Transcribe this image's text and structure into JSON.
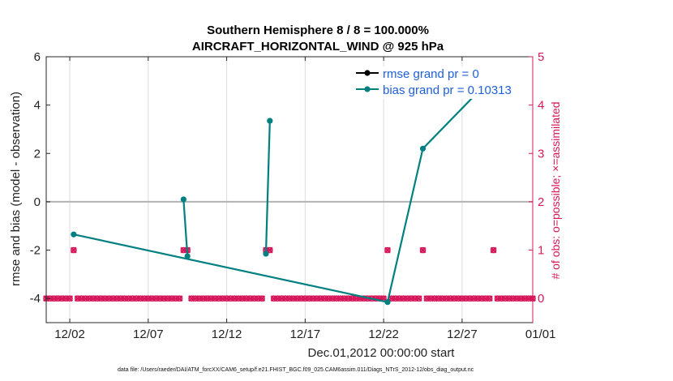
{
  "chart_data": {
    "type": "line",
    "title": [
      "Southern Hemisphere 8 / 8 = 100.000%",
      "AIRCRAFT_HORIZONTAL_WIND @ 925 hPa"
    ],
    "xlabel": "Dec.01,2012 00:00:00 start",
    "ylabel": "rmse and bias (model - observation)",
    "y2label": "# of obs: o=possible; ×=assimilated",
    "footer": "data file: /Users/raeder/DAI/ATM_forcXX/CAM6_setup/f.e21.FHIST_BGC.f09_025.CAM6assim.011/Diags_NTrS_2012-12/obs_diag_output.nc",
    "x_unit": "days since 2012-11-30 (tick dates shown)",
    "xlim": [
      1,
      32
    ],
    "ylim": [
      -5,
      6
    ],
    "y2lim": [
      -0.5,
      5
    ],
    "x_ticks": [
      {
        "x": 2.5,
        "label": "12/02"
      },
      {
        "x": 7.5,
        "label": "12/07"
      },
      {
        "x": 12.5,
        "label": "12/12"
      },
      {
        "x": 17.5,
        "label": "12/17"
      },
      {
        "x": 22.5,
        "label": "12/22"
      },
      {
        "x": 27.5,
        "label": "12/27"
      },
      {
        "x": 32.5,
        "label": "01/01"
      }
    ],
    "y_ticks": [
      -4,
      -2,
      0,
      2,
      4,
      6
    ],
    "y2_ticks": [
      0,
      1,
      2,
      3,
      4,
      5
    ],
    "grid": "vertical",
    "legend_position": "top-right",
    "colors": {
      "rmse": "#000000",
      "bias": "#008080",
      "obs": "#d6185a",
      "zero_line": "#b3b3b3",
      "grid": "#dcdcdc"
    },
    "series": [
      {
        "name": "rmse grand pr = 0",
        "axis": "left",
        "points": []
      },
      {
        "name": "bias grand pr = 0.10313",
        "axis": "left",
        "points": [
          [
            2.75,
            -1.35,
            0
          ],
          [
            9.75,
            0.1,
            1
          ],
          [
            10.0,
            -2.25,
            1
          ],
          [
            15.0,
            -2.15,
            2
          ],
          [
            15.25,
            3.35,
            2
          ],
          [
            22.75,
            -4.15,
            0
          ],
          [
            25.0,
            2.2,
            0
          ],
          [
            29.5,
            5.2,
            0
          ]
        ]
      },
      {
        "name": "# of obs",
        "axis": "right",
        "obs_one_at": [
          2.75,
          9.75,
          10.0,
          15.0,
          15.25,
          22.75,
          25.0,
          29.5
        ],
        "x_start": 1.0,
        "x_end": 32.0,
        "x_step": 0.25
      }
    ]
  },
  "legend": {
    "rmse_label": "rmse grand pr = 0",
    "bias_label": "bias grand pr = 0.10313"
  }
}
